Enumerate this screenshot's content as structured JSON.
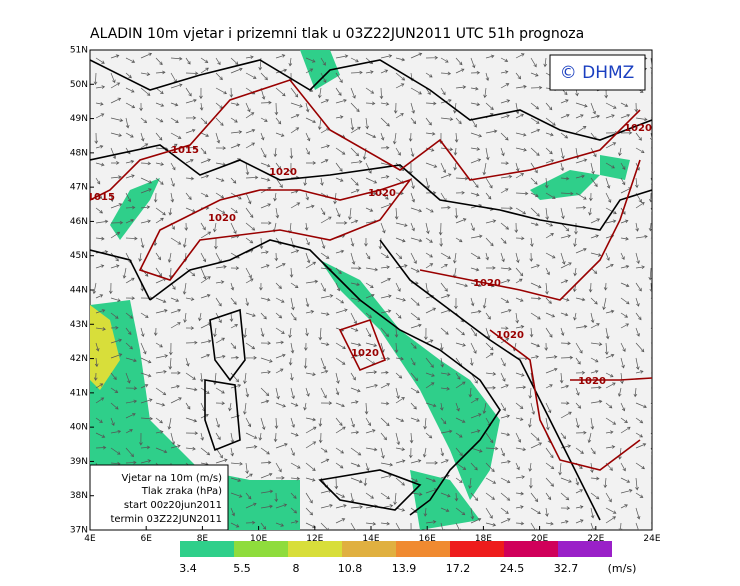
{
  "title": "ALADIN 10m vjetar i prizemni tlak u 03Z22JUN2011 UTC 51h prognoza",
  "copyright": "© DHMZ",
  "lat_labels": [
    "51N",
    "50N",
    "49N",
    "48N",
    "47N",
    "46N",
    "45N",
    "44N",
    "43N",
    "42N",
    "41N",
    "40N",
    "39N",
    "38N",
    "37N"
  ],
  "lon_labels": [
    "4E",
    "6E",
    "8E",
    "10E",
    "12E",
    "14E",
    "16E",
    "18E",
    "20E",
    "22E",
    "24E"
  ],
  "isobar_labels": [
    1015,
    1015,
    1020,
    1020,
    1020,
    1020,
    1020,
    1020,
    1020,
    1020
  ],
  "info_box": [
    "Vjetar na 10m (m/s)",
    "Tlak zraka (hPa)",
    "start 00z20jun2011",
    "termin 03Z22JUN2011"
  ],
  "legend": {
    "thresholds": [
      3.4,
      5.5,
      8,
      10.8,
      13.9,
      17.2,
      24.5,
      32.7
    ],
    "colors": [
      "#2fcf8a",
      "#8fdc3c",
      "#d8de3a",
      "#e0b040",
      "#f08a30",
      "#ee1c1c",
      "#d0005a",
      "#9a20c8"
    ],
    "unit": "(m/s)"
  }
}
